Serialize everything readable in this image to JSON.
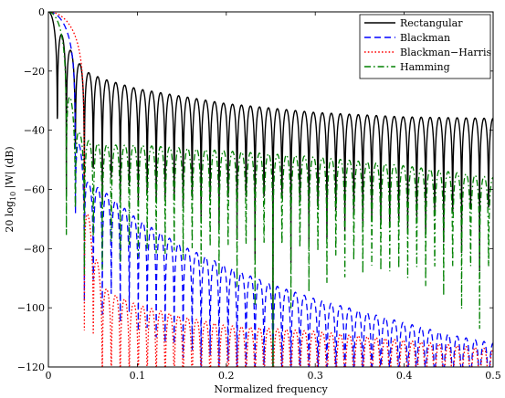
{
  "chart_data": {
    "type": "line",
    "title": "",
    "xlabel": "Normalized frequency",
    "ylabel": "20 log10 |W| (dB)",
    "ylabel_parts": {
      "prefix": "20 log",
      "subscript": "10",
      "suffix": " |W| (dB)"
    },
    "xlim": [
      0,
      0.5
    ],
    "ylim": [
      -120,
      0
    ],
    "xticks": [
      0,
      0.1,
      0.2,
      0.3,
      0.4,
      0.5
    ],
    "xtick_labels": [
      "0",
      "0.1",
      "0.2",
      "0.3",
      "0.4",
      "0.5"
    ],
    "yticks": [
      0,
      -20,
      -40,
      -60,
      -80,
      -100,
      -120
    ],
    "ytick_labels": [
      "0",
      "−20",
      "−40",
      "−60",
      "−80",
      "−100",
      "−120"
    ],
    "grid": false,
    "legend_position": "top-right",
    "series": [
      {
        "name": "Rectangular",
        "color": "#000000",
        "style": "solid",
        "null_spacing": 0.0101,
        "lobe_peaks": [
          [
            0,
            0
          ],
          [
            0.025,
            -13
          ],
          [
            0.035,
            -17.5
          ],
          [
            0.045,
            -20.5
          ],
          [
            0.06,
            -22.5
          ],
          [
            0.1,
            -26
          ],
          [
            0.2,
            -31
          ],
          [
            0.3,
            -34
          ],
          [
            0.4,
            -35.5
          ],
          [
            0.5,
            -36
          ]
        ]
      },
      {
        "name": "Blackman",
        "color": "#0000ff",
        "style": "dashed",
        "null_spacing": 0.0101,
        "lobe_peaks": [
          [
            0,
            0
          ],
          [
            0.045,
            -58
          ],
          [
            0.06,
            -60
          ],
          [
            0.1,
            -70
          ],
          [
            0.15,
            -79
          ],
          [
            0.2,
            -86
          ],
          [
            0.25,
            -92
          ],
          [
            0.3,
            -97
          ],
          [
            0.35,
            -101
          ],
          [
            0.4,
            -105
          ],
          [
            0.45,
            -109
          ],
          [
            0.5,
            -112
          ]
        ]
      },
      {
        "name": "Blackman−Harris",
        "color": "#ff0000",
        "style": "dotted",
        "null_spacing": 0.0101,
        "lobe_peaks": [
          [
            0,
            0
          ],
          [
            0.06,
            -92
          ],
          [
            0.07,
            -95
          ],
          [
            0.1,
            -99
          ],
          [
            0.15,
            -103
          ],
          [
            0.2,
            -106
          ],
          [
            0.3,
            -108
          ],
          [
            0.4,
            -111
          ],
          [
            0.5,
            -114
          ]
        ]
      },
      {
        "name": "Hamming",
        "color": "#008000",
        "style": "dashdot",
        "null_spacing": 0.0101,
        "lobe_peaks": [
          [
            0,
            0
          ],
          [
            0.035,
            -41
          ],
          [
            0.04,
            -43
          ],
          [
            0.06,
            -45
          ],
          [
            0.1,
            -45
          ],
          [
            0.2,
            -47
          ],
          [
            0.3,
            -49
          ],
          [
            0.4,
            -52
          ],
          [
            0.45,
            -54
          ],
          [
            0.5,
            -56
          ]
        ]
      }
    ]
  }
}
